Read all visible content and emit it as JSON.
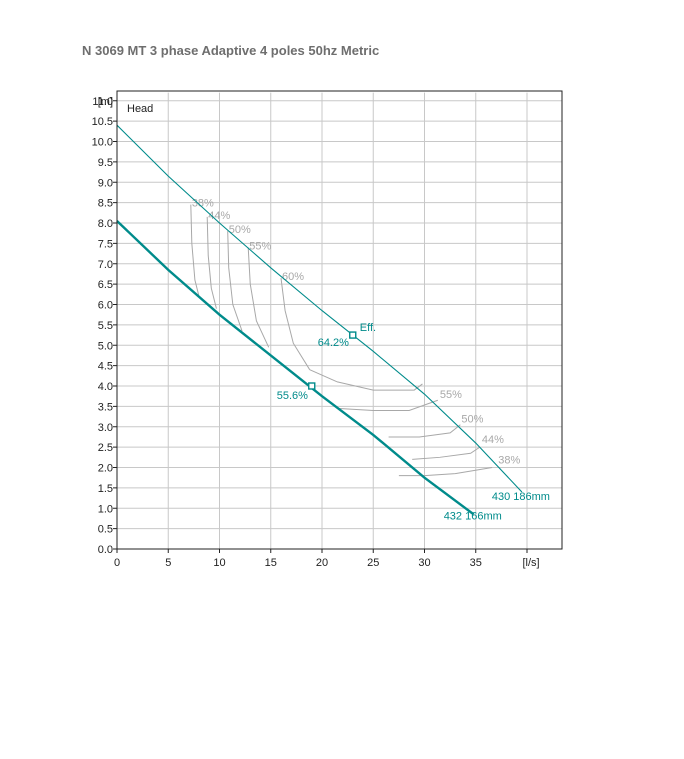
{
  "title": "N 3069 MT 3 phase Adaptive 4 poles 50hz Metric",
  "chart_data": {
    "type": "line",
    "title": "N 3069 MT 3 phase Adaptive 4 poles 50hz Metric",
    "xlabel": "",
    "ylabel": "",
    "x_unit": "[l/s]",
    "y_unit": "[m]",
    "y_axis_name": "Head",
    "xlim": [
      0,
      43.5
    ],
    "ylim": [
      0,
      11.2
    ],
    "x_ticks": [
      "0",
      "5",
      "10",
      "15",
      "20",
      "25",
      "30",
      "35"
    ],
    "y_ticks": [
      "0.0",
      "0.5",
      "1.0",
      "1.5",
      "2.0",
      "2.5",
      "3.0",
      "3.5",
      "4.0",
      "4.5",
      "5.0",
      "5.5",
      "6.0",
      "6.5",
      "7.0",
      "7.5",
      "8.0",
      "8.5",
      "9.0",
      "9.5",
      "10.0",
      "10.5",
      "11.0"
    ],
    "grid": true,
    "colors": {
      "curve": "#008b8b",
      "grid": "#c8c8c8",
      "iso": "#a8a8a8",
      "text": "#222222",
      "title": "#6e6e6e"
    },
    "series": [
      {
        "name": "430 186mm",
        "line": "thin",
        "x": [
          0,
          5,
          10,
          15,
          20,
          25,
          30,
          35,
          39.5
        ],
        "y": [
          10.4,
          9.15,
          8.0,
          6.9,
          5.85,
          4.85,
          3.8,
          2.6,
          1.4
        ]
      },
      {
        "name": "432 166mm",
        "line": "thick",
        "x": [
          0,
          5,
          10,
          15,
          20,
          25,
          30,
          34.8
        ],
        "y": [
          8.05,
          6.85,
          5.75,
          4.75,
          3.75,
          2.8,
          1.75,
          0.85
        ]
      }
    ],
    "markers": [
      {
        "label": "Eff.",
        "value_label": "64.2%",
        "x": 23.0,
        "y": 5.25,
        "series": "430 186mm"
      },
      {
        "label": "",
        "value_label": "55.6%",
        "x": 19.0,
        "y": 4.0,
        "series": "432 166mm"
      }
    ],
    "efficiency_contours": [
      {
        "label": "38%",
        "left": {
          "x": [
            7.2,
            7.3,
            7.6,
            8.0
          ],
          "y": [
            8.45,
            7.5,
            6.6,
            6.2
          ]
        },
        "right": {
          "x": [
            27.5,
            30,
            33,
            36.6
          ],
          "y": [
            1.8,
            1.8,
            1.85,
            2.0
          ]
        },
        "left_label_pos": [
          7.3,
          8.4
        ],
        "right_label_pos": [
          37.2,
          2.1
        ]
      },
      {
        "label": "44%",
        "left": {
          "x": [
            8.8,
            8.9,
            9.2,
            9.7
          ],
          "y": [
            8.15,
            7.2,
            6.4,
            5.9
          ]
        },
        "right": {
          "x": [
            28.8,
            31.5,
            34.5,
            35.4
          ],
          "y": [
            2.2,
            2.25,
            2.35,
            2.5
          ]
        },
        "left_label_pos": [
          8.9,
          8.1
        ],
        "right_label_pos": [
          35.6,
          2.6
        ]
      },
      {
        "label": "50%",
        "left": {
          "x": [
            10.8,
            10.9,
            11.3,
            12.2
          ],
          "y": [
            7.8,
            6.9,
            6.0,
            5.35
          ]
        },
        "right": {
          "x": [
            26.5,
            29.5,
            32.5,
            33.5
          ],
          "y": [
            2.75,
            2.75,
            2.85,
            3.05
          ]
        },
        "left_label_pos": [
          10.9,
          7.75
        ],
        "right_label_pos": [
          33.6,
          3.1
        ]
      },
      {
        "label": "55%",
        "left": {
          "x": [
            12.8,
            13.0,
            13.6,
            14.8
          ],
          "y": [
            7.4,
            6.5,
            5.6,
            4.95
          ]
        },
        "right": {
          "x": [
            21.5,
            25,
            28.5,
            31.3
          ],
          "y": [
            3.45,
            3.4,
            3.4,
            3.65
          ]
        },
        "left_label_pos": [
          12.9,
          7.35
        ],
        "right_label_pos": [
          31.5,
          3.7
        ]
      },
      {
        "label": "60%",
        "left": {
          "x": [
            16.0,
            16.4,
            17.2,
            18.8
          ],
          "y": [
            6.65,
            5.85,
            5.05,
            4.4
          ]
        },
        "right": {
          "x": [
            18.8,
            21.5,
            25,
            29,
            29.8
          ],
          "y": [
            4.4,
            4.1,
            3.9,
            3.9,
            4.05
          ]
        },
        "left_label_pos": [
          16.1,
          6.6
        ],
        "right_label_pos": null
      }
    ]
  }
}
